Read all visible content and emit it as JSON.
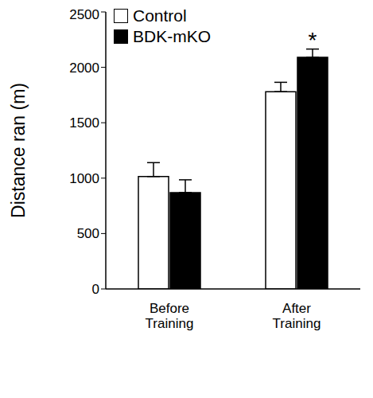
{
  "chart_data": {
    "type": "bar",
    "y_label": "Distance ran  (m)",
    "categories": [
      "Before Training",
      "After Training"
    ],
    "series": [
      {
        "name": "Control",
        "color": "#ffffff",
        "values": [
          1015,
          1780
        ],
        "errors": [
          125,
          85
        ]
      },
      {
        "name": "BDK-mKO",
        "color": "#000000",
        "values": [
          870,
          2090
        ],
        "errors": [
          115,
          75
        ]
      }
    ],
    "ylim": [
      0,
      2500
    ],
    "yticks": [
      0,
      500,
      1000,
      1500,
      2000,
      2500
    ],
    "grid": false,
    "legend": "upper left",
    "annotations": [
      {
        "text": "*",
        "series": "BDK-mKO",
        "category": "After Training"
      }
    ]
  }
}
